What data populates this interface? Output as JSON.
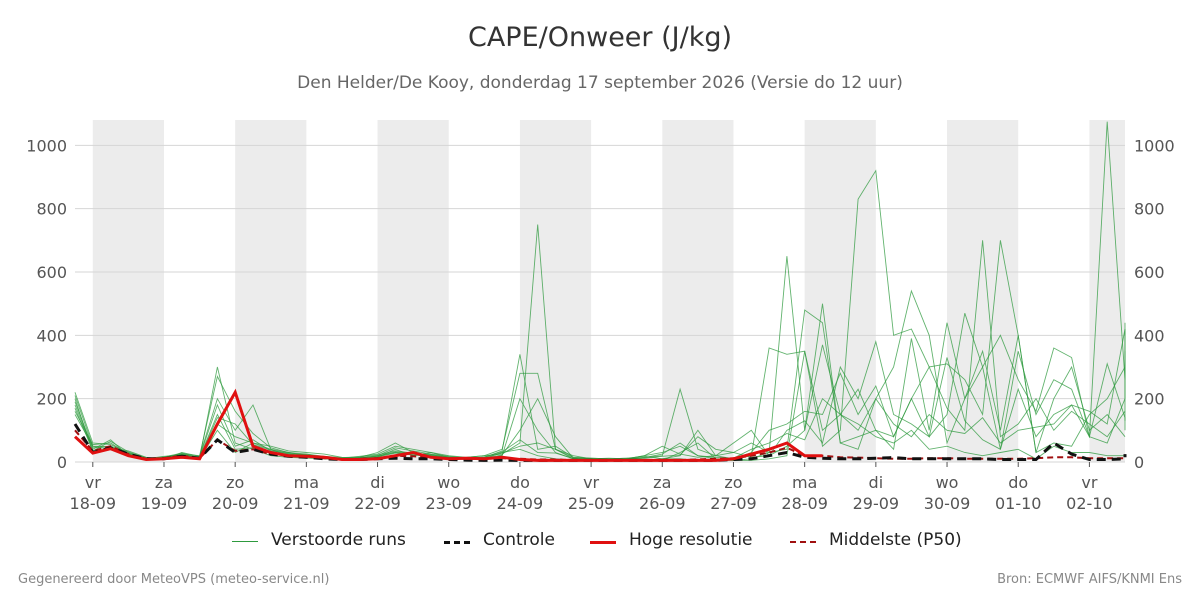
{
  "chart_data": {
    "type": "line",
    "title": "CAPE/Onweer (J/kg)",
    "subtitle": "Den Helder/De Kooy, donderdag 17 september 2026 (Versie do 12 uur)",
    "ylim": [
      0,
      1080
    ],
    "yticks": [
      0,
      200,
      400,
      600,
      800,
      1000
    ],
    "x_day_labels": [
      {
        "day": "vr",
        "date": "18-09"
      },
      {
        "day": "za",
        "date": "19-09"
      },
      {
        "day": "zo",
        "date": "20-09"
      },
      {
        "day": "ma",
        "date": "21-09"
      },
      {
        "day": "di",
        "date": "22-09"
      },
      {
        "day": "wo",
        "date": "23-09"
      },
      {
        "day": "do",
        "date": "24-09"
      },
      {
        "day": "vr",
        "date": "25-09"
      },
      {
        "day": "za",
        "date": "26-09"
      },
      {
        "day": "zo",
        "date": "27-09"
      },
      {
        "day": "ma",
        "date": "28-09"
      },
      {
        "day": "di",
        "date": "29-09"
      },
      {
        "day": "wo",
        "date": "30-09"
      },
      {
        "day": "do",
        "date": "01-10"
      },
      {
        "day": "vr",
        "date": "02-10"
      }
    ],
    "x_range_days": [
      -0.25,
      14.5
    ],
    "grid": true,
    "legend_position": "bottom",
    "series_styles": {
      "ensemble": {
        "color": "#2e9a3e"
      },
      "control": {
        "color": "#111111"
      },
      "hires": {
        "color": "#e01010"
      },
      "median": {
        "color": "#a01010"
      }
    },
    "ensemble_series": [
      [
        220,
        60,
        55,
        30,
        10,
        12,
        20,
        15,
        150,
        40,
        45,
        30,
        25,
        20,
        10,
        8,
        10,
        15,
        40,
        20,
        30,
        15,
        10,
        10,
        30,
        40,
        20,
        10,
        5,
        5,
        5,
        5,
        5,
        10,
        10,
        5,
        5,
        5,
        5,
        10,
        20,
        350,
        100,
        150,
        120,
        80,
        60,
        100,
        40,
        50,
        30,
        20,
        30,
        40,
        10,
        50,
        30,
        30,
        20,
        20
      ],
      [
        180,
        40,
        70,
        20,
        12,
        15,
        25,
        10,
        100,
        30,
        60,
        40,
        20,
        25,
        15,
        10,
        12,
        18,
        30,
        25,
        20,
        12,
        15,
        20,
        40,
        280,
        280,
        40,
        10,
        10,
        5,
        10,
        20,
        30,
        50,
        20,
        10,
        5,
        10,
        30,
        650,
        100,
        500,
        60,
        40,
        200,
        300,
        540,
        400,
        60,
        200,
        350,
        100,
        400,
        30,
        60,
        50,
        150,
        200,
        300
      ],
      [
        150,
        50,
        40,
        25,
        8,
        10,
        18,
        12,
        300,
        60,
        40,
        20,
        15,
        12,
        10,
        8,
        15,
        30,
        60,
        30,
        20,
        15,
        10,
        10,
        20,
        200,
        100,
        30,
        10,
        8,
        10,
        12,
        8,
        5,
        30,
        60,
        10,
        8,
        20,
        360,
        340,
        350,
        50,
        100,
        830,
        920,
        400,
        420,
        300,
        310,
        260,
        150,
        700,
        400,
        30,
        200,
        300,
        100,
        150,
        80
      ],
      [
        200,
        30,
        45,
        35,
        15,
        8,
        30,
        18,
        200,
        100,
        180,
        40,
        30,
        20,
        15,
        12,
        18,
        25,
        50,
        40,
        30,
        20,
        15,
        20,
        25,
        60,
        750,
        40,
        20,
        10,
        8,
        10,
        20,
        50,
        25,
        15,
        20,
        30,
        60,
        30,
        40,
        480,
        440,
        60,
        80,
        100,
        40,
        390,
        100,
        440,
        200,
        300,
        400,
        260,
        160,
        360,
        330,
        80,
        60,
        200,
        440
      ],
      [
        160,
        55,
        60,
        25,
        10,
        18,
        22,
        14,
        120,
        80,
        60,
        50,
        35,
        30,
        25,
        15,
        12,
        20,
        45,
        35,
        25,
        18,
        12,
        15,
        35,
        340,
        40,
        50,
        15,
        12,
        10,
        8,
        12,
        18,
        22,
        80,
        40,
        30,
        15,
        20,
        50,
        100,
        370,
        150,
        230,
        100,
        80,
        200,
        300,
        170,
        100,
        700,
        80,
        120,
        200,
        100,
        160,
        120,
        80,
        160
      ],
      [
        190,
        45,
        50,
        28,
        14,
        12,
        26,
        20,
        270,
        160,
        90,
        45,
        30,
        25,
        18,
        14,
        16,
        22,
        35,
        28,
        22,
        16,
        14,
        12,
        22,
        100,
        200,
        80,
        12,
        10,
        12,
        10,
        15,
        20,
        230,
        40,
        20,
        60,
        100,
        20,
        100,
        130,
        60,
        300,
        200,
        380,
        150,
        120,
        80,
        150,
        470,
        300,
        40,
        350,
        150,
        260,
        230,
        80,
        310,
        140,
        130
      ],
      [
        170,
        35,
        65,
        32,
        12,
        14,
        24,
        16,
        180,
        50,
        70,
        35,
        28,
        22,
        12,
        10,
        14,
        16,
        28,
        22,
        18,
        14,
        10,
        14,
        28,
        50,
        60,
        40,
        14,
        12,
        10,
        12,
        18,
        10,
        20,
        100,
        20,
        10,
        30,
        100,
        120,
        160,
        150,
        280,
        150,
        240,
        80,
        200,
        80,
        330,
        130,
        70,
        40,
        230,
        80,
        150,
        180,
        160,
        120,
        420,
        100
      ],
      [
        210,
        50,
        48,
        26,
        11,
        16,
        28,
        13,
        140,
        120,
        55,
        38,
        26,
        18,
        14,
        12,
        13,
        19,
        32,
        26,
        24,
        13,
        11,
        16,
        32,
        70,
        30,
        28,
        11,
        9,
        9,
        9,
        14,
        25,
        60,
        20,
        15,
        12,
        40,
        60,
        90,
        70,
        200,
        150,
        100,
        200,
        120,
        80,
        150,
        100,
        90,
        140,
        60,
        100,
        110,
        120,
        180,
        80,
        1075,
        260,
        350
      ]
    ],
    "control": [
      120,
      30,
      45,
      25,
      10,
      10,
      18,
      12,
      70,
      30,
      40,
      25,
      18,
      15,
      10,
      8,
      8,
      10,
      12,
      10,
      10,
      8,
      6,
      5,
      6,
      5,
      5,
      5,
      5,
      5,
      5,
      5,
      5,
      5,
      5,
      5,
      5,
      8,
      10,
      20,
      30,
      15,
      12,
      10,
      10,
      12,
      14,
      10,
      10,
      10,
      10,
      10,
      8,
      8,
      8,
      60,
      25,
      8,
      8,
      10,
      10,
      10,
      25,
      20,
      15
    ],
    "hires": [
      80,
      28,
      42,
      20,
      8,
      10,
      15,
      10,
      120,
      220,
      50,
      30,
      20,
      18,
      15,
      8,
      8,
      10,
      20,
      30,
      15,
      10,
      12,
      10,
      15,
      8,
      5,
      5,
      5,
      5,
      5,
      5,
      5,
      5,
      5,
      5,
      5,
      10,
      25,
      40,
      60,
      20,
      20
    ],
    "median": [
      100,
      35,
      50,
      25,
      10,
      12,
      20,
      12,
      70,
      35,
      40,
      25,
      20,
      18,
      12,
      8,
      10,
      12,
      20,
      18,
      15,
      12,
      10,
      10,
      12,
      10,
      8,
      8,
      6,
      6,
      6,
      6,
      6,
      6,
      6,
      8,
      10,
      12,
      20,
      30,
      45,
      20,
      20,
      15,
      14,
      12,
      10,
      10,
      12,
      12,
      10,
      10,
      10,
      10,
      12,
      15,
      15,
      12,
      12,
      12,
      12,
      12,
      15,
      15,
      15
    ],
    "legend": [
      {
        "key": "ensemble",
        "label": "Verstoorde runs"
      },
      {
        "key": "control",
        "label": "Controle"
      },
      {
        "key": "hires",
        "label": "Hoge resolutie"
      },
      {
        "key": "median",
        "label": "Middelste (P50)"
      }
    ]
  },
  "footer": {
    "left": "Gegenereerd door MeteoVPS (meteo-service.nl)",
    "right": "Bron: ECMWF AIFS/KNMI Ens"
  }
}
